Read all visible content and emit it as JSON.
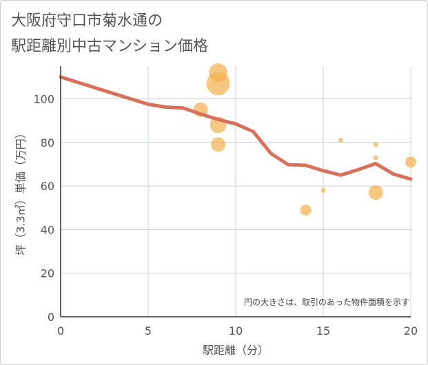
{
  "title_line1": "大阪府守口市菊水通の",
  "title_line2": "駅距離別中古マンション価格",
  "chart_data": {
    "type": "scatter",
    "xlabel": "駅距離（分）",
    "ylabel": "坪（3.3㎡）単価（万円）",
    "xlim": [
      0,
      20
    ],
    "ylim": [
      0,
      115
    ],
    "xticks": [
      0,
      5,
      10,
      15,
      20
    ],
    "yticks": [
      0,
      20,
      40,
      60,
      80,
      100
    ],
    "grid": true,
    "note": "円の大きさは、取引のあった物件面積を示す",
    "scatter_color": "#f2b24f",
    "line_color": "#d9705a",
    "points": [
      {
        "x": 8,
        "y": 95,
        "size": 3
      },
      {
        "x": 9,
        "y": 112,
        "size": 5
      },
      {
        "x": 9,
        "y": 107,
        "size": 6
      },
      {
        "x": 9,
        "y": 88,
        "size": 4
      },
      {
        "x": 9,
        "y": 79,
        "size": 3
      },
      {
        "x": 14,
        "y": 49,
        "size": 2
      },
      {
        "x": 15,
        "y": 58,
        "size": 1
      },
      {
        "x": 16,
        "y": 81,
        "size": 1
      },
      {
        "x": 18,
        "y": 79,
        "size": 1
      },
      {
        "x": 18,
        "y": 73,
        "size": 1
      },
      {
        "x": 18,
        "y": 57,
        "size": 3
      },
      {
        "x": 20,
        "y": 71,
        "size": 2
      }
    ],
    "line": {
      "x": [
        0,
        1,
        2,
        3,
        4,
        5,
        6,
        7,
        8,
        9,
        10,
        11,
        12,
        13,
        14,
        15,
        16,
        17,
        18,
        19,
        20
      ],
      "y": [
        110,
        107.5,
        105,
        102.5,
        100,
        97.5,
        96.2,
        95.8,
        93,
        90.5,
        88.5,
        85,
        75,
        69.8,
        69.5,
        67,
        65,
        67.5,
        70.3,
        65.5,
        63.2
      ]
    }
  }
}
